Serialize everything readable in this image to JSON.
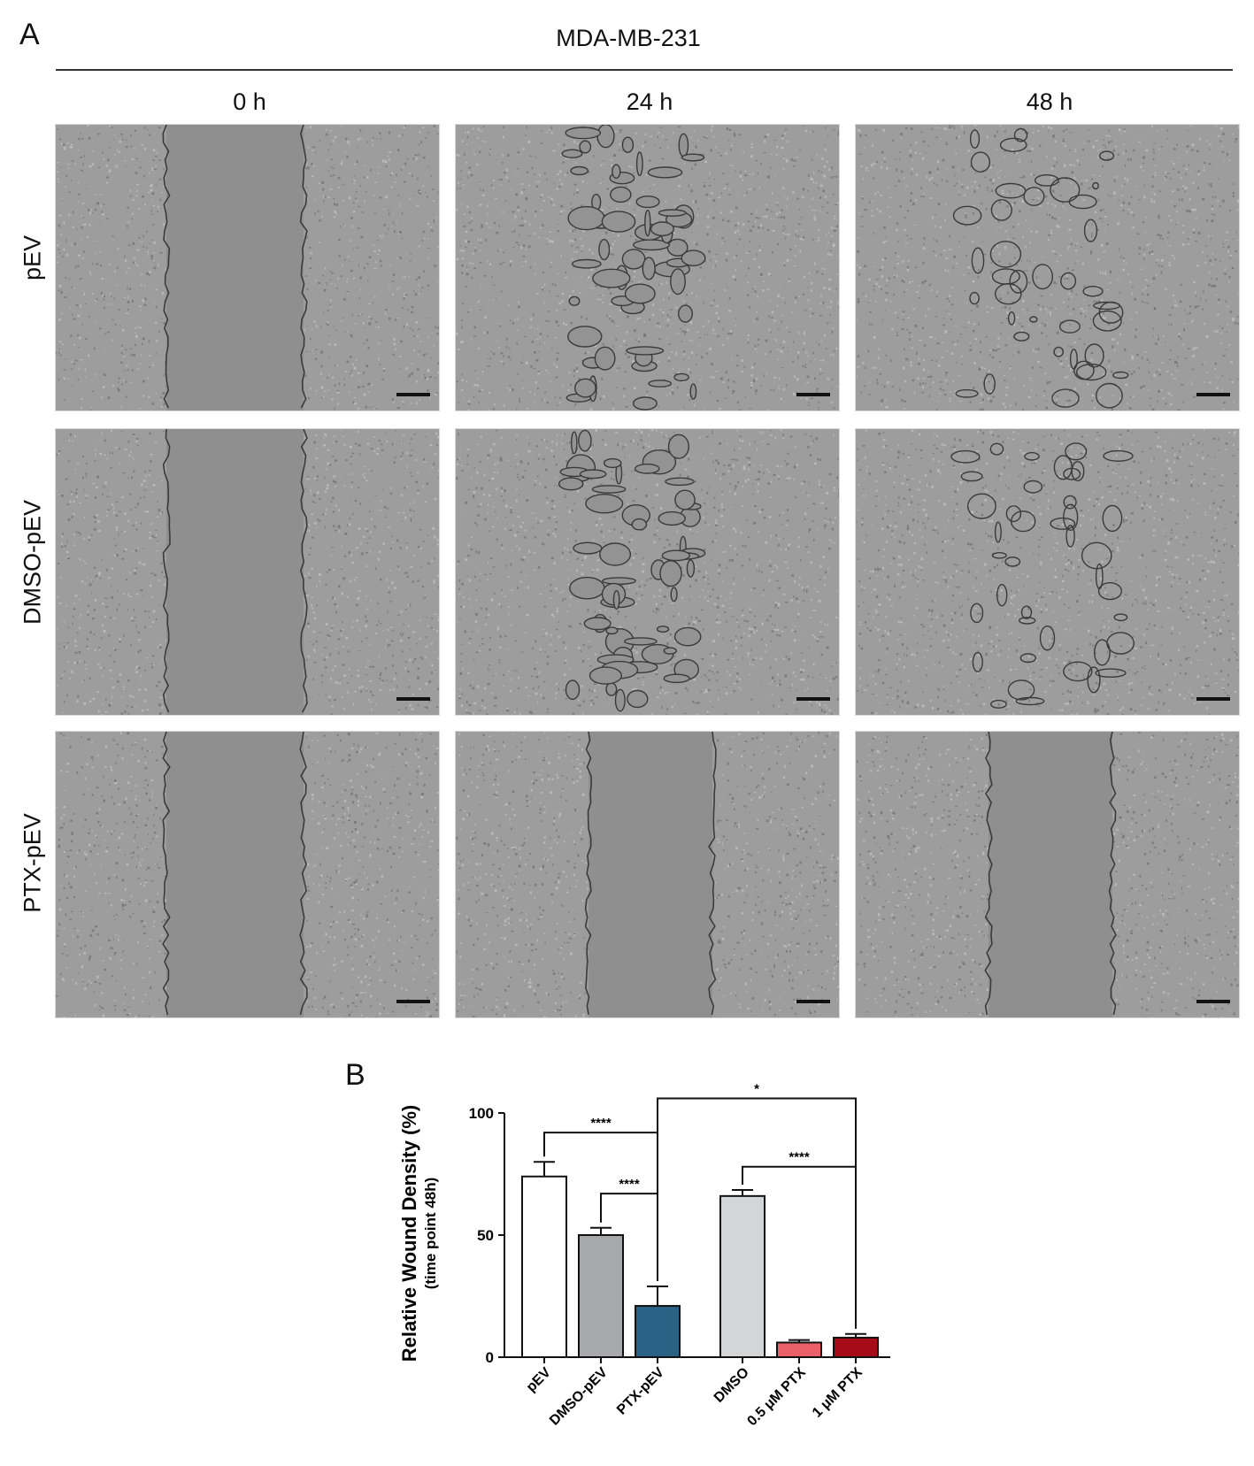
{
  "figure": {
    "panel_a_label": "A",
    "panel_b_label": "B",
    "cell_line": "MDA-MB-231",
    "timepoints": [
      "0 h",
      "24 h",
      "48 h"
    ],
    "conditions": [
      "pEV",
      "DMSO-pEV",
      "PTX-pEV"
    ],
    "wound_state": [
      [
        "open",
        "closing",
        "nearly-closed"
      ],
      [
        "open",
        "closing",
        "nearly-closed"
      ],
      [
        "open",
        "open",
        "open"
      ]
    ]
  },
  "chart_data": {
    "type": "bar",
    "title": "",
    "ylabel": "Relative Wound Density (%)",
    "ylabel_sub": "(time point 48h)",
    "ylim": [
      0,
      100
    ],
    "yticks": [
      0,
      50,
      100
    ],
    "categories": [
      "pEV",
      "DMSO-pEV",
      "PTX-pEV",
      "DMSO",
      "0.5 μM PTX",
      "1 μM PTX"
    ],
    "values": [
      74,
      50,
      21,
      66,
      6,
      8
    ],
    "errors": [
      6,
      3,
      8,
      2.5,
      1,
      1.5
    ],
    "colors": [
      "#ffffff",
      "#a6a8ab",
      "#2a6285",
      "#d4d5d6",
      "#ea5f68",
      "#a50c18"
    ],
    "group_gap_after": 2,
    "significance": [
      {
        "from": 0,
        "to": 2,
        "label": "****"
      },
      {
        "from": 1,
        "to": 2,
        "label": "****"
      },
      {
        "from": 2,
        "to": 5,
        "label": "*"
      },
      {
        "from": 3,
        "to": 5,
        "label": "****"
      }
    ]
  }
}
